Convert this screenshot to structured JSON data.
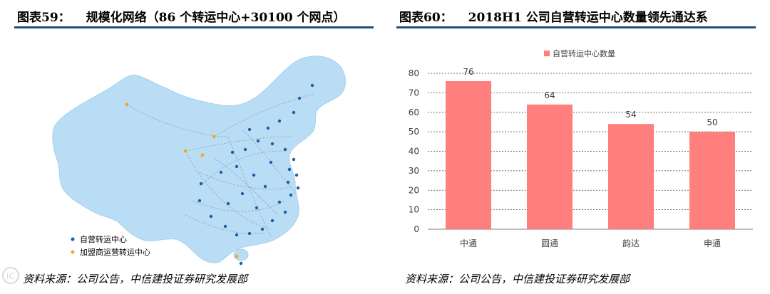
{
  "left": {
    "title_num": "图表59：",
    "title_text": "规模化网络（86 个转运中心+30100 个网点）",
    "legend": [
      {
        "label": "自营转运中心",
        "color": "#1f5ca8"
      },
      {
        "label": "加盟商运营转运中心",
        "color": "#f5a623"
      }
    ],
    "source": "资料来源：公司公告，中信建投证券研究发展部",
    "map_fill": "#b9ddf5"
  },
  "right": {
    "title_num": "图表60：",
    "title_text": "2018H1 公司自营转运中心数量领先通达系",
    "source": "资料来源：公司公告，中信建投证券研究发展部"
  },
  "chart_data": {
    "type": "bar",
    "categories": [
      "中通",
      "圆通",
      "韵达",
      "申通"
    ],
    "series": [
      {
        "name": "自营转运中心数量",
        "values": [
          76,
          64,
          54,
          50
        ],
        "color": "#ff7f7f"
      }
    ],
    "data_labels": [
      "76",
      "64",
      "54",
      "50"
    ],
    "ylim": [
      0,
      80
    ],
    "yticks": [
      "0",
      "10",
      "20",
      "30",
      "40",
      "50",
      "60",
      "70",
      "80"
    ],
    "grid": true,
    "legend_position": "top-center"
  },
  "watermark": "iC"
}
